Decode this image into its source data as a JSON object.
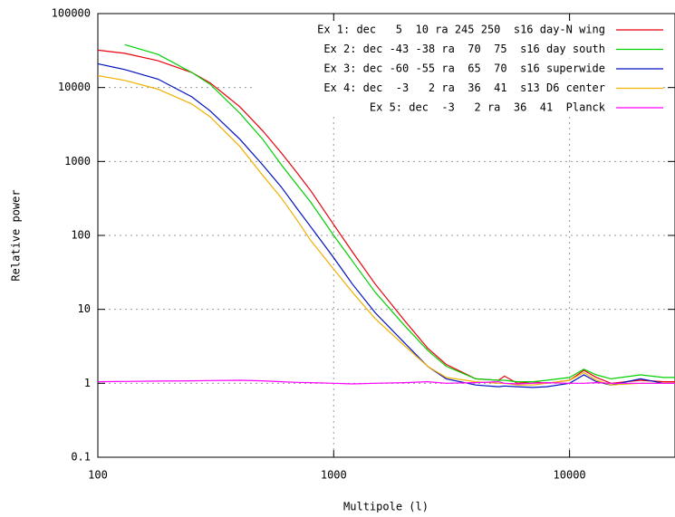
{
  "chart_data": {
    "type": "line",
    "xlabel": "Multipole (l)",
    "ylabel": "Relative power",
    "xlog": true,
    "ylog": true,
    "grid": true,
    "legend": "top-right",
    "xlim": [
      100,
      28000
    ],
    "xticks": [
      100,
      1000,
      10000
    ],
    "ylim": [
      0.1,
      100000
    ],
    "yticks": [
      0.1,
      1,
      10,
      100,
      1000,
      10000,
      100000
    ],
    "x": [
      100,
      130,
      180,
      250,
      300,
      400,
      500,
      600,
      700,
      800,
      1000,
      1200,
      1500,
      2000,
      2500,
      3000,
      4000,
      5000,
      5300,
      6000,
      7000,
      8000,
      10000,
      11500,
      13000,
      15000,
      20000,
      25000,
      28000
    ],
    "series": [
      {
        "name": "Ex 1: dec   5  10 ra 245 250  s16 day-N wing",
        "color": "#e8000b",
        "values": [
          32000,
          29000,
          23000,
          16000,
          11500,
          5500,
          2600,
          1300,
          700,
          400,
          140,
          60,
          22,
          7,
          3,
          1.8,
          1.15,
          1.1,
          1.25,
          1.0,
          1.05,
          1.0,
          1.1,
          1.5,
          1.2,
          1.0,
          1.1,
          1.05,
          1.05
        ]
      },
      {
        "name": "Ex 2: dec -43 -38 ra  70  75  s16 day south",
        "color": "#00d000",
        "values": [
          null,
          38000,
          28000,
          16000,
          11000,
          4500,
          2000,
          900,
          480,
          280,
          100,
          45,
          17,
          6,
          2.8,
          1.7,
          1.15,
          1.1,
          1.1,
          1.05,
          1.05,
          1.1,
          1.2,
          1.55,
          1.3,
          1.15,
          1.3,
          1.2,
          1.2
        ]
      },
      {
        "name": "Ex 3: dec -60 -55 ra  65  70  s16 superwide",
        "color": "#0010c0",
        "values": [
          21000,
          17500,
          13000,
          7500,
          4800,
          2000,
          900,
          450,
          230,
          130,
          50,
          22,
          9,
          3.5,
          1.7,
          1.15,
          0.95,
          0.9,
          0.92,
          0.9,
          0.88,
          0.9,
          1.0,
          1.3,
          1.05,
          0.95,
          1.15,
          1.0,
          1.0
        ]
      },
      {
        "name": "Ex 4: dec  -3   2 ra  36  41  s13 D6 center",
        "color": "#f0b000",
        "values": [
          14500,
          12500,
          9500,
          6000,
          4000,
          1600,
          650,
          320,
          160,
          85,
          35,
          17,
          7.5,
          3.2,
          1.7,
          1.2,
          1.05,
          1.0,
          1.0,
          0.95,
          0.95,
          1.0,
          1.1,
          1.4,
          1.1,
          0.95,
          1.0,
          1.0,
          1.0
        ]
      },
      {
        "name": "Ex 5: dec  -3   2 ra  36  41  Planck",
        "color": "#ff00ff",
        "values": [
          1.05,
          1.06,
          1.07,
          1.08,
          1.09,
          1.1,
          1.08,
          1.05,
          1.03,
          1.02,
          1.0,
          0.98,
          1.0,
          1.02,
          1.05,
          1.0,
          1.02,
          1.05,
          1.0,
          0.98,
          1.0,
          1.02,
          1.0,
          1.0,
          1.02,
          1.0,
          1.0,
          1.0,
          1.0
        ]
      }
    ]
  }
}
